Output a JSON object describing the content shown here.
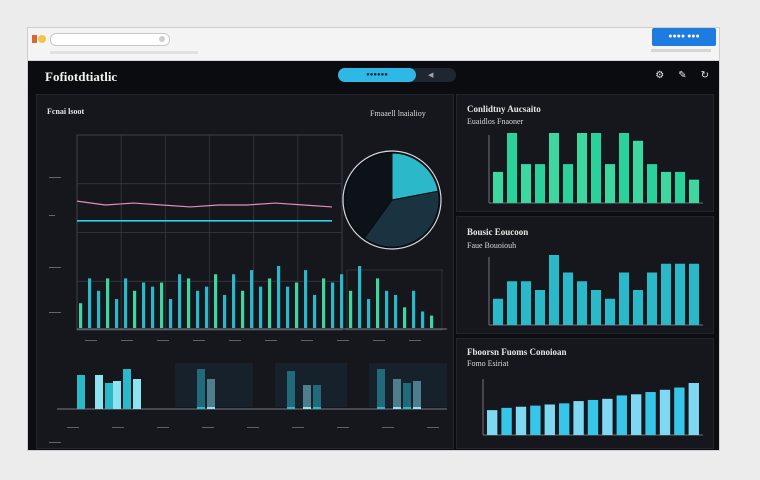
{
  "app": {
    "brand": "Fofiotdtiatlic",
    "cta_label": "●●●● ●●●",
    "pill_active": "●●●●●●",
    "pill_icon": "◀",
    "icons": [
      "settings-icon",
      "pin-icon",
      "refresh-icon"
    ]
  },
  "colors": {
    "accent": "#2eb8e6",
    "green": "#3fd7a0",
    "teal": "#2bb9c9",
    "pink": "#e38bbf",
    "panel": "#15171c"
  },
  "main_panel": {
    "title": "Fcnai lsoot",
    "right_label": "Fmaaell lnaialioy",
    "y_ticks": [
      "——",
      "—",
      "——",
      "——",
      "——"
    ],
    "x_ticks": [
      "——",
      "——",
      "——",
      "——",
      "——",
      "——",
      "——",
      "——",
      "——",
      "——"
    ],
    "bottom_ticks": [
      "——",
      "——",
      "——",
      "——",
      "——",
      "——",
      "——",
      "——",
      "——"
    ]
  },
  "right_panels": [
    {
      "title": "Conlidtny Aucsaito",
      "subtitle": "Euaidlos Fnaoner"
    },
    {
      "title": "Bousic Eoucoon",
      "subtitle": "Faue Bouoiouh"
    },
    {
      "title": "Fboorsn Fuoms Conoioan",
      "subtitle": "Fomo Esiriat"
    }
  ],
  "chart_data": [
    {
      "type": "bar",
      "title": "Fcnai lsoot",
      "values": [
        6,
        12,
        9,
        12,
        7,
        12,
        9,
        11,
        10,
        11,
        7,
        13,
        12,
        9,
        10,
        13,
        8,
        13,
        9,
        14,
        10,
        12,
        15,
        10,
        11,
        14,
        8,
        12,
        11,
        13,
        9,
        15,
        7,
        12,
        9,
        8,
        5,
        9,
        4,
        3
      ],
      "series_lines": [
        {
          "values": [
            0.62,
            0.6,
            0.61,
            0.6,
            0.59,
            0.6,
            0.6,
            0.61,
            0.6,
            0.59
          ]
        },
        {
          "values": [
            0.56,
            0.56,
            0.56,
            0.56,
            0.56,
            0.56,
            0.56,
            0.56,
            0.56,
            0.56
          ]
        }
      ]
    },
    {
      "type": "pie",
      "values": [
        22,
        38,
        40
      ]
    },
    {
      "type": "bar",
      "title": "Conlidtny Aucsaito",
      "values": [
        4,
        9,
        5,
        5,
        9,
        5,
        9,
        9,
        5,
        9,
        8,
        5,
        4,
        4,
        3
      ]
    },
    {
      "type": "bar",
      "title": "Bousic Eoucoon",
      "values": [
        3,
        5,
        5,
        4,
        8,
        6,
        5,
        4,
        3,
        6,
        4,
        6,
        7,
        7,
        7
      ]
    },
    {
      "type": "bar",
      "title": "Fboorsn Fuoms Conoioan",
      "values": [
        2.2,
        2.4,
        2.5,
        2.6,
        2.7,
        2.8,
        3.0,
        3.1,
        3.2,
        3.5,
        3.6,
        3.8,
        4.0,
        4.2,
        4.6
      ]
    }
  ]
}
